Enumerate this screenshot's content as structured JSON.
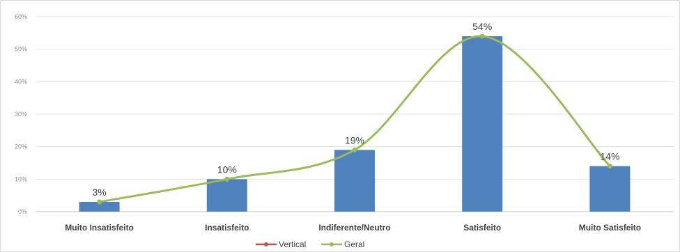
{
  "chart_data": {
    "type": "bar",
    "categories": [
      "Muito Insatisfeito",
      "Insatisfeito",
      "Indiferente/Neutro",
      "Satisfeito",
      "Muito Satisfeito"
    ],
    "ylim": [
      0,
      60
    ],
    "yticks": [
      0,
      10,
      20,
      30,
      40,
      50,
      60
    ],
    "ytick_format": "%",
    "grid": true,
    "legend_position": "bottom",
    "series": [
      {
        "name": "Vertical",
        "kind": "line",
        "color": "#c0504d",
        "values": [
          3,
          10,
          19,
          54,
          14
        ]
      },
      {
        "name": "Geral",
        "kind": "line",
        "color": "#9bbb59",
        "values": [
          3,
          10,
          19,
          54,
          14
        ]
      }
    ],
    "bars": {
      "color": "#4f81bd",
      "values": [
        3,
        10,
        19,
        54,
        14
      ]
    },
    "data_labels": [
      "3%",
      "10%",
      "19%",
      "54%",
      "14%"
    ]
  }
}
